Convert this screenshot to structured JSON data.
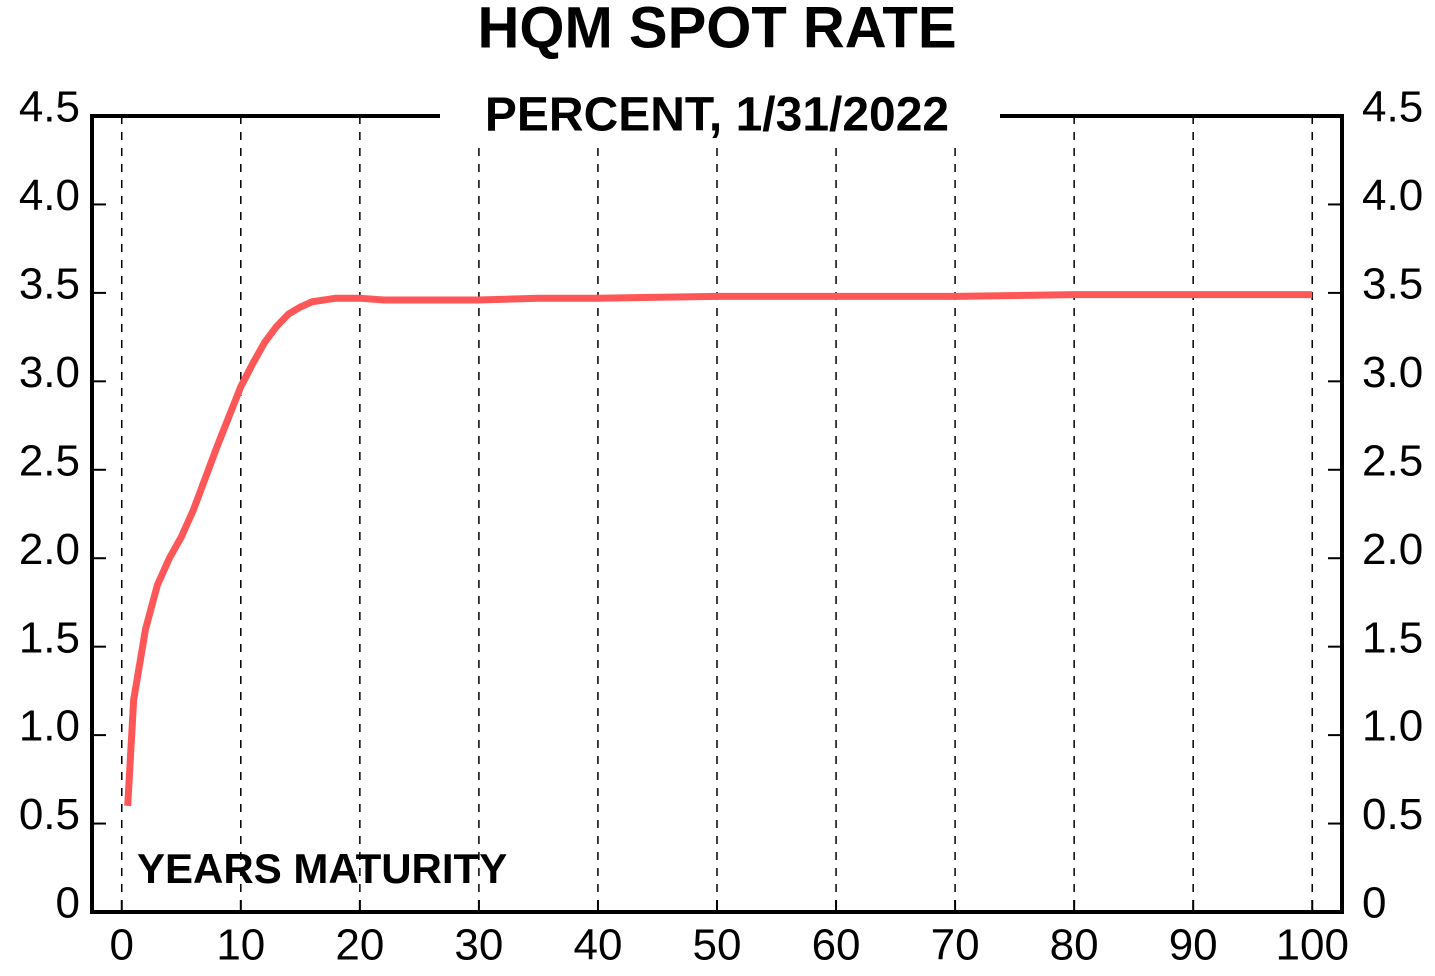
{
  "chart_data": {
    "type": "line",
    "title": "HQM SPOT RATE",
    "subtitle": "PERCENT, 1/31/2022",
    "annotation": "YEARS MATURITY",
    "x": [
      0.5,
      1,
      2,
      3,
      4,
      5,
      6,
      7,
      8,
      9,
      10,
      11,
      12,
      13,
      14,
      15,
      16,
      17,
      18,
      20,
      22,
      25,
      30,
      35,
      40,
      50,
      60,
      70,
      80,
      90,
      100
    ],
    "series": [
      {
        "name": "HQM spot rate",
        "color": "#ff5757",
        "values": [
          0.6,
          1.2,
          1.6,
          1.85,
          2.0,
          2.12,
          2.27,
          2.45,
          2.63,
          2.8,
          2.97,
          3.1,
          3.22,
          3.31,
          3.38,
          3.42,
          3.45,
          3.46,
          3.47,
          3.47,
          3.46,
          3.46,
          3.46,
          3.47,
          3.47,
          3.48,
          3.48,
          3.48,
          3.49,
          3.49,
          3.49
        ]
      }
    ],
    "xlim": [
      -2.5,
      102.5
    ],
    "xticks": [
      0,
      10,
      20,
      30,
      40,
      50,
      60,
      70,
      80,
      90,
      100
    ],
    "ylim": [
      0,
      4.5
    ],
    "yticks": [
      0,
      0.5,
      {
        "value": 1,
        "label": "1.0"
      },
      1.5,
      {
        "value": 2,
        "label": "2.0"
      },
      2.5,
      {
        "value": 3,
        "label": "3.0"
      },
      3.5,
      {
        "value": 4,
        "label": "4.0"
      },
      4.5
    ],
    "grid": true
  }
}
